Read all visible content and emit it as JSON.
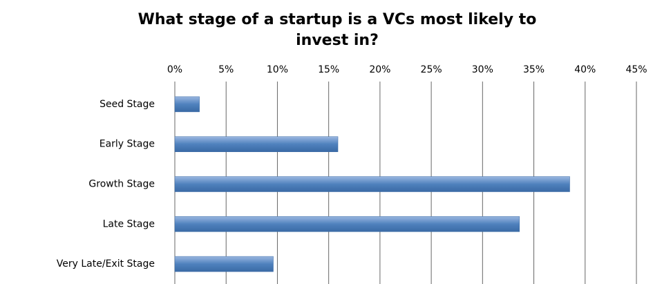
{
  "chart_data": {
    "type": "bar",
    "orientation": "horizontal",
    "title": [
      "What stage of a startup is a VCs most likely to",
      "invest in?"
    ],
    "categories": [
      "Seed Stage",
      "Early Stage",
      "Growth Stage",
      "Late Stage",
      "Very Late/Exit Stage"
    ],
    "values": [
      2.4,
      15.9,
      38.5,
      33.6,
      9.6
    ],
    "color": "#4f81bd",
    "xlim": [
      0,
      45
    ],
    "xticks": [
      {
        "value": 0,
        "label": "0%"
      },
      {
        "value": 5,
        "label": "5%"
      },
      {
        "value": 10,
        "label": "10%"
      },
      {
        "value": 15,
        "label": "15%"
      },
      {
        "value": 20,
        "label": "20%"
      },
      {
        "value": 25,
        "label": "25%"
      },
      {
        "value": 30,
        "label": "30%"
      },
      {
        "value": 35,
        "label": "35%"
      },
      {
        "value": 40,
        "label": "40%"
      },
      {
        "value": 45,
        "label": "45%"
      }
    ],
    "grid": true
  }
}
